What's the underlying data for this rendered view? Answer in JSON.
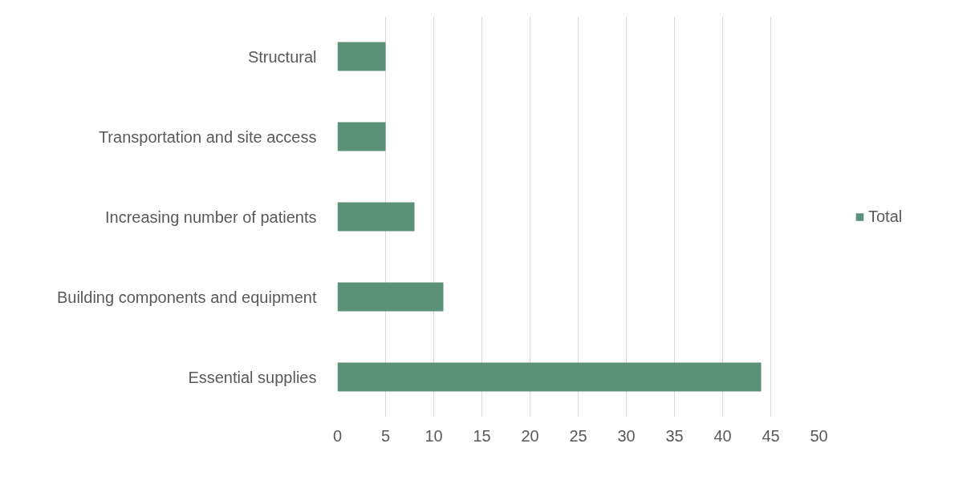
{
  "chart_data": {
    "type": "bar",
    "orientation": "horizontal",
    "categories": [
      "Structural",
      "Transportation and site access",
      "Increasing number of patients",
      "Building components and equipment",
      "Essential supplies"
    ],
    "series": [
      {
        "name": "Total",
        "color": "#5b9079",
        "values": [
          5,
          5,
          8,
          11,
          44
        ]
      }
    ],
    "xlim": [
      0,
      50
    ],
    "xticks": [
      0,
      5,
      10,
      15,
      20,
      25,
      30,
      35,
      40,
      45,
      50
    ],
    "grid": "x",
    "legend": "right"
  }
}
